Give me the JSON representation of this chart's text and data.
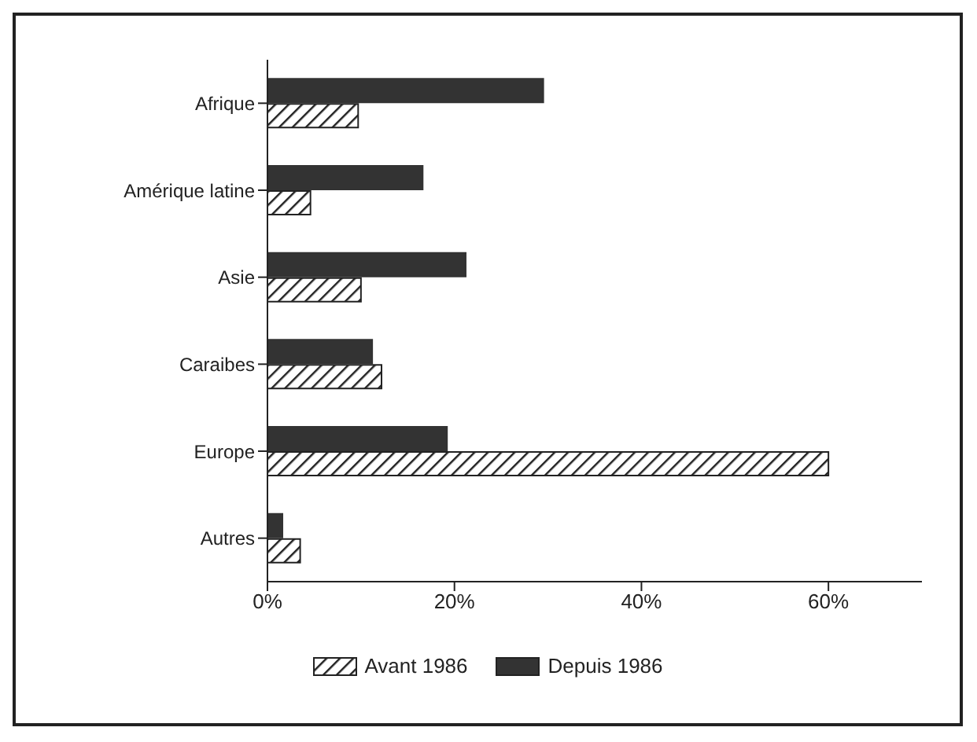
{
  "chart_data": {
    "type": "bar",
    "orientation": "horizontal",
    "categories": [
      "Afrique",
      "Amérique latine",
      "Asie",
      "Caraibes",
      "Europe",
      "Autres"
    ],
    "series": [
      {
        "name": "Avant 1986",
        "color": "#222222",
        "values": [
          9.7,
          4.6,
          10,
          12.2,
          60,
          3.5
        ]
      },
      {
        "name": "Depuis 1986",
        "color": "#333333",
        "values": [
          29.5,
          16.6,
          21.2,
          11.2,
          19.2,
          1.6
        ]
      }
    ],
    "xlim": [
      0,
      70
    ],
    "xticks": [
      {
        "value": 0,
        "label": "0%"
      },
      {
        "value": 20,
        "label": "20%"
      },
      {
        "value": 40,
        "label": "40%"
      },
      {
        "value": 60,
        "label": "60%"
      }
    ],
    "grid": false,
    "legend": "bottom"
  }
}
